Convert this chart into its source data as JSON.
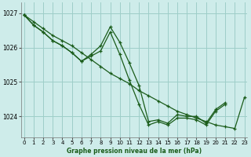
{
  "title": "Graphe pression niveau de la mer (hPa)",
  "background_color": "#ceecea",
  "grid_color": "#9ecec8",
  "line_color": "#1a5c1a",
  "xlim": [
    -0.3,
    23.3
  ],
  "ylim": [
    1023.4,
    1027.3
  ],
  "yticks": [
    1024,
    1025,
    1026,
    1027
  ],
  "xticks": [
    0,
    1,
    2,
    3,
    4,
    5,
    6,
    7,
    8,
    9,
    10,
    11,
    12,
    13,
    14,
    15,
    16,
    17,
    18,
    19,
    20,
    21,
    22,
    23
  ],
  "series": [
    {
      "x": [
        0,
        1,
        2,
        3,
        4,
        5,
        6,
        7,
        8,
        9,
        10,
        11,
        12,
        13,
        14,
        15,
        16,
        17,
        18,
        19,
        20,
        21,
        22,
        23
      ],
      "y": [
        1026.95,
        1026.75,
        1026.55,
        1026.35,
        1026.2,
        1026.05,
        1025.85,
        1025.65,
        1025.45,
        1025.25,
        1025.1,
        1024.95,
        1024.75,
        1024.6,
        1024.45,
        1024.3,
        1024.15,
        1024.05,
        1023.95,
        1023.85,
        1023.75,
        1023.7,
        1023.65,
        1024.55
      ]
    },
    {
      "x": [
        0,
        1,
        2,
        3,
        4,
        5,
        6,
        7,
        8,
        9,
        10,
        11,
        12,
        13,
        14,
        15,
        16,
        17,
        18,
        19,
        20,
        21
      ],
      "y": [
        1026.95,
        1026.65,
        1026.45,
        1026.2,
        1026.05,
        1025.85,
        1025.6,
        1025.8,
        1026.05,
        1026.6,
        1026.15,
        1025.55,
        1024.9,
        1023.85,
        1023.9,
        1023.8,
        1024.05,
        1024.0,
        1024.0,
        1023.8,
        1024.2,
        1024.4
      ]
    },
    {
      "x": [
        0,
        1,
        2,
        3,
        4,
        5,
        6,
        7,
        8,
        9,
        10,
        11,
        12,
        13,
        14,
        15,
        16,
        17,
        18,
        19,
        20,
        21
      ],
      "y": [
        1026.95,
        1026.65,
        1026.45,
        1026.2,
        1026.05,
        1025.85,
        1025.6,
        1025.75,
        1025.9,
        1026.45,
        1025.8,
        1025.05,
        1024.35,
        1023.75,
        1023.85,
        1023.75,
        1023.95,
        1023.95,
        1023.9,
        1023.75,
        1024.15,
        1024.35
      ]
    }
  ]
}
